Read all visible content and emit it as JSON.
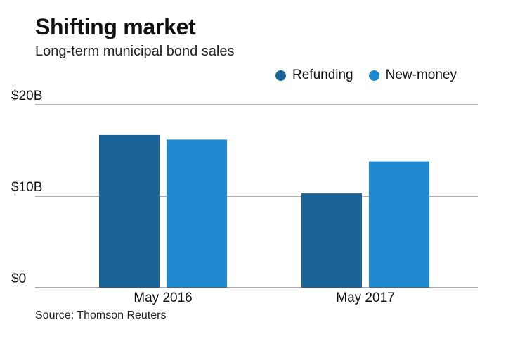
{
  "chart_data": {
    "type": "bar",
    "title": "Shifting market",
    "subtitle": "Long-term municipal bond sales",
    "categories": [
      "May 2016",
      "May 2017"
    ],
    "series": [
      {
        "name": "Refunding",
        "values": [
          16.7,
          10.3
        ],
        "color": "#1a6499"
      },
      {
        "name": "New-money",
        "values": [
          16.2,
          13.8
        ],
        "color": "#1e88d0"
      }
    ],
    "y_ticks": [
      {
        "value": 20,
        "label": "$20B"
      },
      {
        "value": 10,
        "label": "$10B"
      },
      {
        "value": 0,
        "label": "$0"
      }
    ],
    "ylim": [
      0,
      20
    ],
    "grid": true,
    "legend_position": "top-right",
    "source": "Source: Thomson Reuters"
  }
}
